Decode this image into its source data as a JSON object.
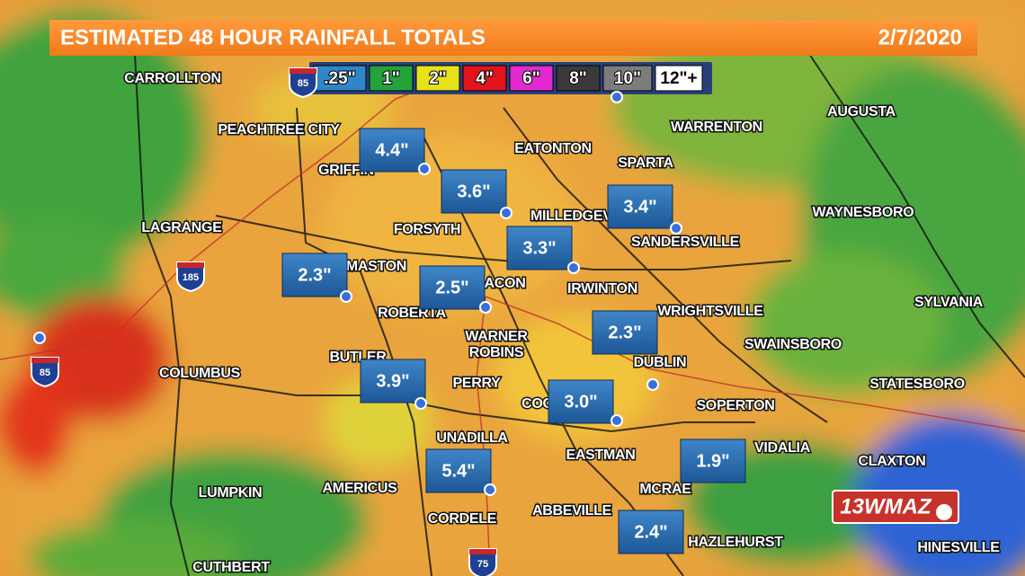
{
  "header": {
    "title": "ESTIMATED 48 HOUR RAINFALL TOTALS",
    "date": "2/7/2020"
  },
  "legend": [
    {
      "label": ".25\"",
      "color": "#2f86c9",
      "text_color": "#ffffff"
    },
    {
      "label": "1\"",
      "color": "#23a33a",
      "text_color": "#ffffff"
    },
    {
      "label": "2\"",
      "color": "#e6e21a",
      "text_color": "#ffffff"
    },
    {
      "label": "4\"",
      "color": "#e3141c",
      "text_color": "#ffffff"
    },
    {
      "label": "6\"",
      "color": "#e22ad0",
      "text_color": "#ffffff"
    },
    {
      "label": "8\"",
      "color": "#3a3a3a",
      "text_color": "#ffffff"
    },
    {
      "label": "10\"",
      "color": "#7c7c7c",
      "text_color": "#ffffff"
    },
    {
      "label": "12\"+",
      "color": "#ffffff",
      "text_color": "#000000"
    }
  ],
  "cities": [
    "CARROLLTON",
    "PEACHTREE CITY",
    "GRIFFIN",
    "LAGRANGE",
    "FORSYTH",
    "EATONTON",
    "WARRENTON",
    "AUGUSTA",
    "SPARTA",
    "MILLEDGEVILLE",
    "SANDERSVILLE",
    "WAYNESBORO",
    "THOMASTON",
    "MACON",
    "IRWINTON",
    "ROBERTA",
    "WRIGHTSVILLE",
    "SYLVANIA",
    "SWAINSBORO",
    "WARNER",
    "ROBINS",
    "BUTLER",
    "DUBLIN",
    "COLUMBUS",
    "PERRY",
    "STATESBORO",
    "COCHRAN",
    "SOPERTON",
    "UNADILLA",
    "VIDALIA",
    "EASTMAN",
    "CLAXTON",
    "LUMPKIN",
    "AMERICUS",
    "MCRAE",
    "CORDELE",
    "ABBEVILLE",
    "HAZLEHURST",
    "HINESVILLE",
    "CUTHBERT"
  ],
  "markers": [
    "4.4\"",
    "3.6\"",
    "3.4\"",
    "3.3\"",
    "2.3\"",
    "2.5\"",
    "2.3\"",
    "3.9\"",
    "3.0\"",
    "5.4\"",
    "1.9\"",
    "2.4\""
  ],
  "shields": [
    "85",
    "185",
    "85",
    "75"
  ],
  "logo": "13WMAZ"
}
